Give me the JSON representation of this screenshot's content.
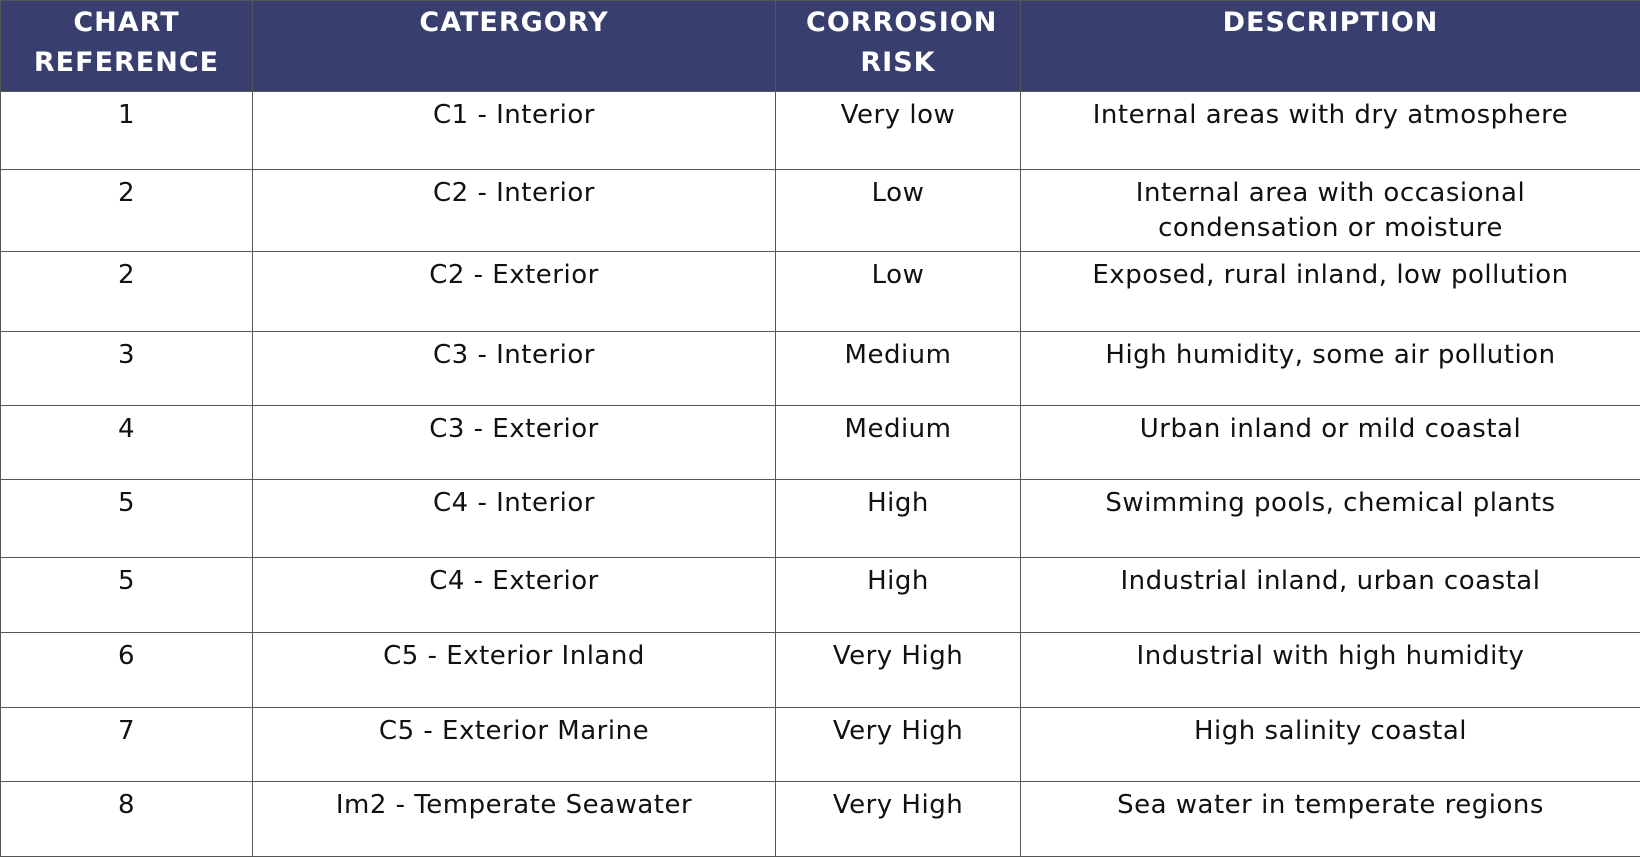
{
  "table": {
    "header": [
      "CHART REFERENCE",
      "CATERGORY",
      "CORROSION RISK",
      "DESCRIPTION"
    ],
    "rows": [
      [
        "1",
        "C1 - Interior",
        "Very low",
        "Internal areas with dry atmosphere"
      ],
      [
        "2",
        "C2 - Interior",
        "Low",
        "Internal area with occasional condensation or moisture"
      ],
      [
        "2",
        "C2 - Exterior",
        "Low",
        "Exposed, rural inland, low pollution"
      ],
      [
        "3",
        "C3 - Interior",
        "Medium",
        "High humidity, some air pollution"
      ],
      [
        "4",
        "C3 - Exterior",
        "Medium",
        "Urban inland or mild coastal"
      ],
      [
        "5",
        "C4 - Interior",
        "High",
        "Swimming pools, chemical plants"
      ],
      [
        "5",
        "C4 - Exterior",
        "High",
        "Industrial inland, urban coastal"
      ],
      [
        "6",
        "C5 - Exterior Inland",
        "Very High",
        "Industrial with high humidity"
      ],
      [
        "7",
        "C5 - Exterior Marine",
        "Very High",
        "High salinity coastal"
      ],
      [
        "8",
        "Im2 - Temperate Seawater",
        "Very High",
        "Sea water in temperate regions"
      ]
    ]
  }
}
